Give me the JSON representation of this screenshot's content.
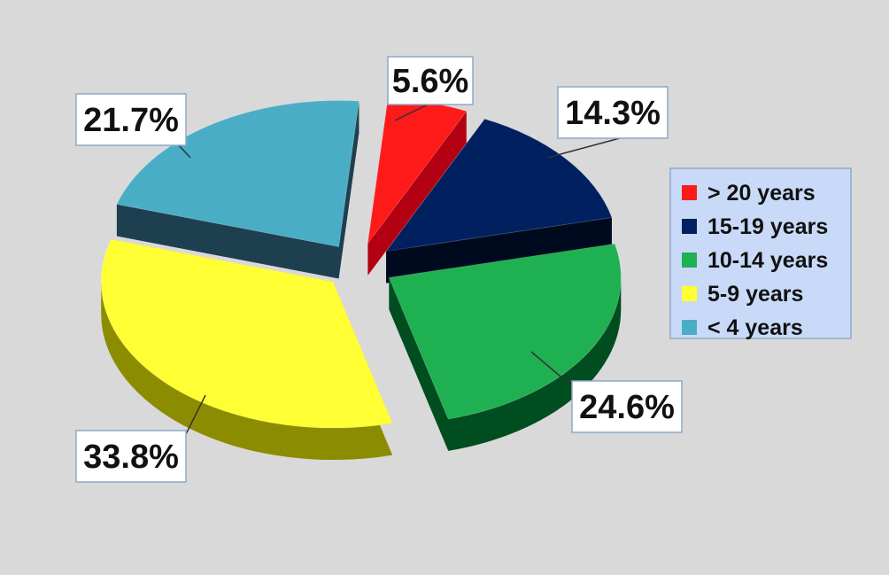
{
  "chart_data": {
    "type": "pie",
    "style": "3d-exploded",
    "title": "",
    "legend_position": "right",
    "slices": [
      {
        "label": "> 20  years",
        "value": 5.6,
        "display": "5.6%",
        "color": "#ff1a1a",
        "side_color": "#b30012"
      },
      {
        "label": "15-19 years",
        "value": 14.3,
        "display": "14.3%",
        "color": "#002060",
        "side_color": "#000a1f"
      },
      {
        "label": "10-14 years",
        "value": 24.6,
        "display": "24.6%",
        "color": "#1fb052",
        "side_color": "#004d1f"
      },
      {
        "label": "5-9 years",
        "value": 33.8,
        "display": "33.8%",
        "color": "#ffff33",
        "side_color": "#8c8c00"
      },
      {
        "label": "< 4 years",
        "value": 21.7,
        "display": "21.7%",
        "color": "#4aadc6",
        "side_color": "#1e3f4f"
      }
    ]
  }
}
